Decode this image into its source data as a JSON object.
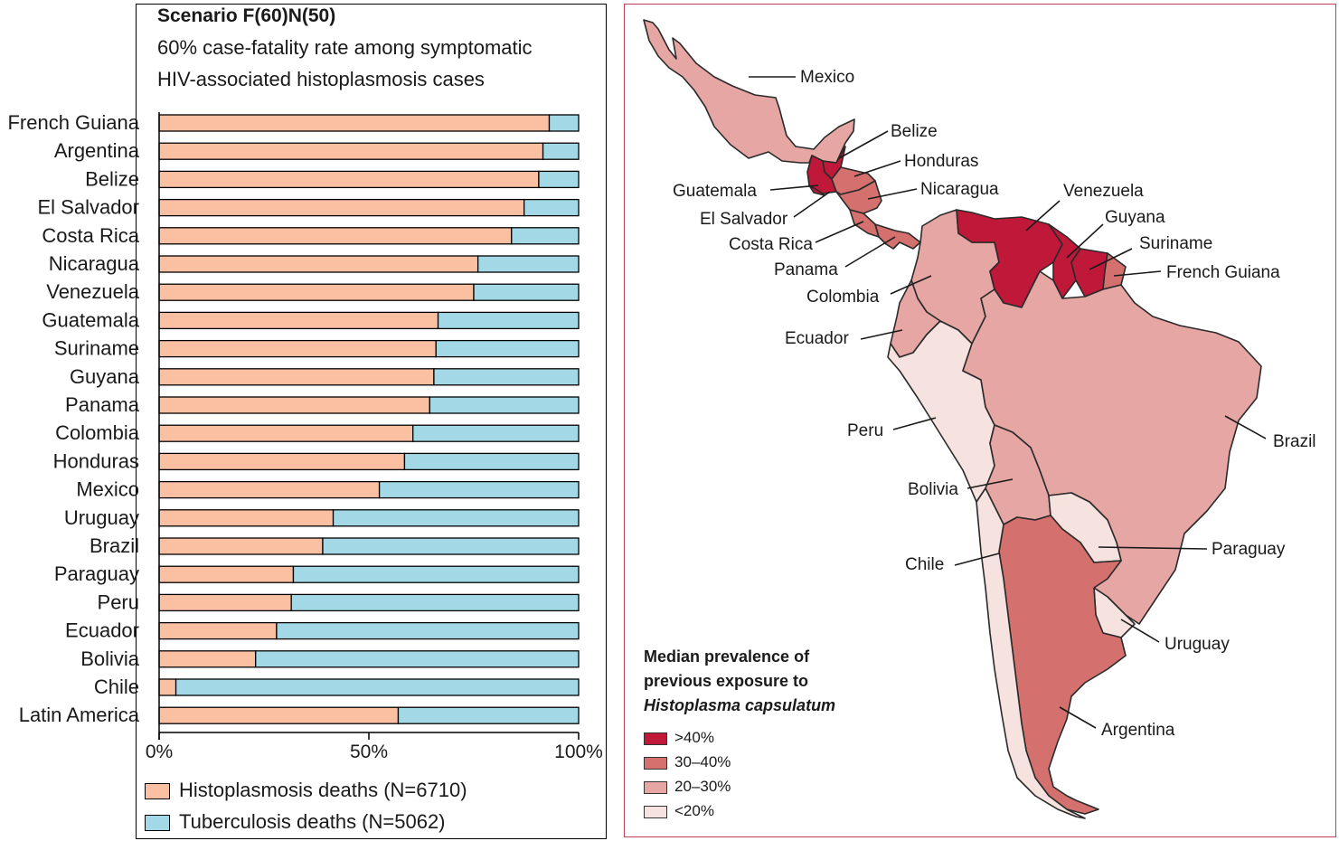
{
  "chart_data": {
    "type": "bar",
    "stacked": true,
    "orientation": "horizontal",
    "title": "Scenario F(60)N(50)",
    "subtitle": [
      "60% case-fatality rate among symptomatic",
      "HIV-associated histoplasmosis cases"
    ],
    "categories": [
      "French Guiana",
      "Argentina",
      "Belize",
      "El Salvador",
      "Costa Rica",
      "Nicaragua",
      "Venezuela",
      "Guatemala",
      "Suriname",
      "Guyana",
      "Panama",
      "Colombia",
      "Honduras",
      "Mexico",
      "Uruguay",
      "Brazil",
      "Paraguay",
      "Peru",
      "Ecuador",
      "Bolivia",
      "Chile",
      "Latin America"
    ],
    "series": [
      {
        "name": "Histoplasmosis deaths (N=6710)",
        "color": "#fbbfa2",
        "values": [
          93,
          91.5,
          90.5,
          87,
          84,
          76,
          75,
          66.5,
          66,
          65.5,
          64.5,
          60.5,
          58.5,
          52.5,
          41.5,
          39,
          32,
          31.5,
          28,
          23,
          4,
          57
        ]
      },
      {
        "name": "Tuberculosis deaths (N=5062)",
        "color": "#a3d9e6",
        "values": [
          7,
          8.5,
          9.5,
          13,
          16,
          24,
          25,
          33.5,
          34,
          34.5,
          35.5,
          39.5,
          41.5,
          47.5,
          58.5,
          61,
          68,
          68.5,
          72,
          77,
          96,
          43
        ]
      }
    ],
    "xticks": [
      "0%",
      "50%",
      "100%"
    ],
    "xlim": [
      0,
      100
    ]
  },
  "map": {
    "legend_title": [
      "Median prevalence of",
      "previous exposure to",
      "Histoplasma capsulatum"
    ],
    "legend": [
      {
        "label": ">40%",
        "color": "#c01838"
      },
      {
        "label": "30–40%",
        "color": "#d4716e"
      },
      {
        "label": "20–30%",
        "color": "#e6a6a4"
      },
      {
        "label": "<20%",
        "color": "#f6e2de"
      }
    ],
    "countries": [
      {
        "name": "Mexico",
        "prevalence_class": "20–30%"
      },
      {
        "name": "Belize",
        "prevalence_class": ">40%"
      },
      {
        "name": "Honduras",
        "prevalence_class": "30–40%"
      },
      {
        "name": "Guatemala",
        "prevalence_class": ">40%"
      },
      {
        "name": "Nicaragua",
        "prevalence_class": "30–40%"
      },
      {
        "name": "El Salvador",
        "prevalence_class": ">40%"
      },
      {
        "name": "Costa Rica",
        "prevalence_class": "30–40%"
      },
      {
        "name": "Panama",
        "prevalence_class": "30–40%"
      },
      {
        "name": "Venezuela",
        "prevalence_class": ">40%"
      },
      {
        "name": "Guyana",
        "prevalence_class": ">40%"
      },
      {
        "name": "Suriname",
        "prevalence_class": ">40%"
      },
      {
        "name": "French Guiana",
        "prevalence_class": "30–40%"
      },
      {
        "name": "Colombia",
        "prevalence_class": "20–30%"
      },
      {
        "name": "Ecuador",
        "prevalence_class": "20–30%"
      },
      {
        "name": "Peru",
        "prevalence_class": "<20%"
      },
      {
        "name": "Brazil",
        "prevalence_class": "20–30%"
      },
      {
        "name": "Bolivia",
        "prevalence_class": "20–30%"
      },
      {
        "name": "Paraguay",
        "prevalence_class": "<20%"
      },
      {
        "name": "Chile",
        "prevalence_class": "<20%"
      },
      {
        "name": "Uruguay",
        "prevalence_class": "<20%"
      },
      {
        "name": "Argentina",
        "prevalence_class": "30–40%"
      }
    ]
  }
}
